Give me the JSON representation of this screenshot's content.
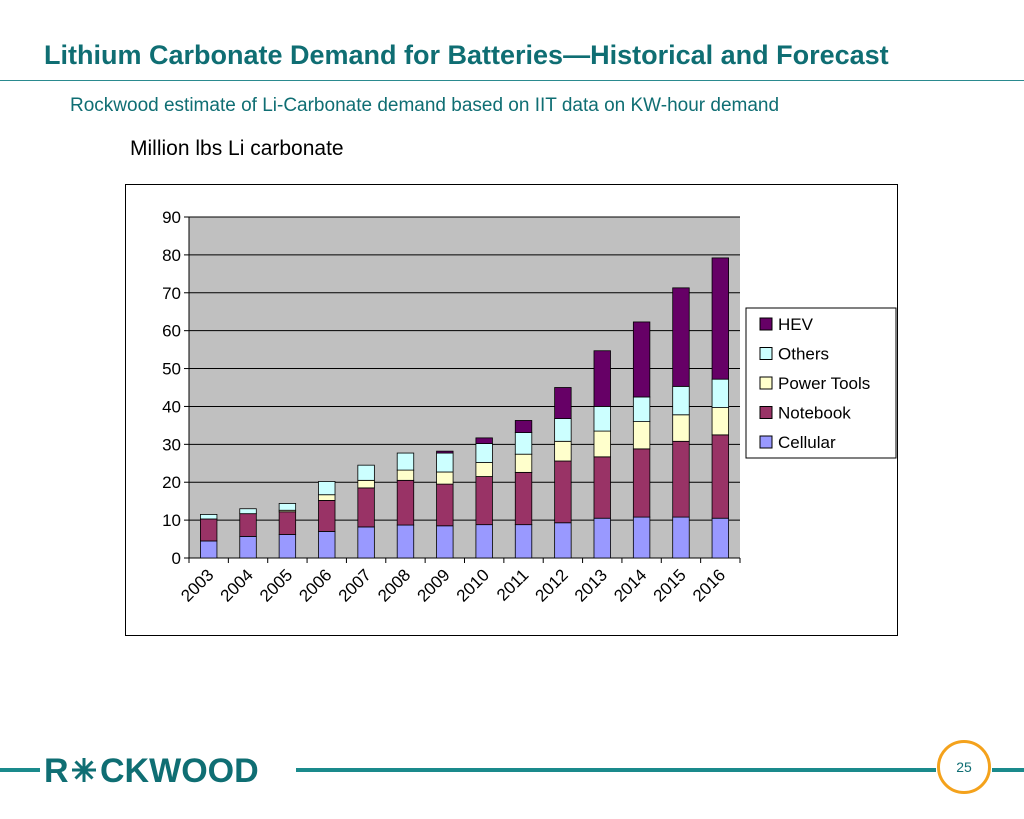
{
  "slide": {
    "title": "Lithium Carbonate Demand for Batteries—Historical and Forecast",
    "subtitle": "Rockwood estimate of Li-Carbonate demand based on IIT data on KW-hour demand",
    "units_label": "Million lbs Li carbonate",
    "page_number": "25",
    "logo_text": "ROCKWOOD"
  },
  "colors": {
    "title": "#0f6e73",
    "footer_line": "#1a8a8c",
    "page_circle": "#f4a21c",
    "plot_background": "#c0c0c0"
  },
  "chart_data": {
    "type": "bar",
    "stacked": true,
    "categories": [
      "2003",
      "2004",
      "2005",
      "2006",
      "2007",
      "2008",
      "2009",
      "2010",
      "2011",
      "2012",
      "2013",
      "2014",
      "2015",
      "2016"
    ],
    "series": [
      {
        "name": "Cellular",
        "color": "#9999ff",
        "values": [
          4.5,
          5.7,
          6.2,
          7.0,
          8.2,
          8.7,
          8.5,
          8.8,
          8.8,
          9.3,
          10.5,
          10.8,
          10.8,
          10.5
        ]
      },
      {
        "name": "Notebook",
        "color": "#993366",
        "values": [
          5.8,
          6.0,
          6.0,
          8.2,
          10.3,
          11.8,
          11.0,
          12.7,
          13.8,
          16.3,
          16.2,
          18.0,
          20.0,
          22.0
        ]
      },
      {
        "name": "Power Tools",
        "color": "#ffffcc",
        "values": [
          0.0,
          0.0,
          0.4,
          1.5,
          2.0,
          2.7,
          3.2,
          3.7,
          4.8,
          5.2,
          6.8,
          7.2,
          7.0,
          7.2
        ]
      },
      {
        "name": "Others",
        "color": "#ccffff",
        "values": [
          1.2,
          1.3,
          1.8,
          3.5,
          4.0,
          4.5,
          5.0,
          5.0,
          5.7,
          6.0,
          6.5,
          6.5,
          7.5,
          7.5
        ]
      },
      {
        "name": "HEV",
        "color": "#660066",
        "values": [
          0.0,
          0.0,
          0.0,
          0.0,
          0.0,
          0.0,
          0.5,
          1.5,
          3.2,
          8.2,
          14.7,
          19.8,
          26.0,
          32.0
        ]
      }
    ],
    "legend_order": [
      "HEV",
      "Others",
      "Power Tools",
      "Notebook",
      "Cellular"
    ],
    "legend_position": "right",
    "ylim": [
      0,
      90
    ],
    "yticks": [
      "0",
      "10",
      "20",
      "30",
      "40",
      "50",
      "60",
      "70",
      "80",
      "90"
    ],
    "xlabel": "",
    "ylabel": "",
    "grid": true
  }
}
